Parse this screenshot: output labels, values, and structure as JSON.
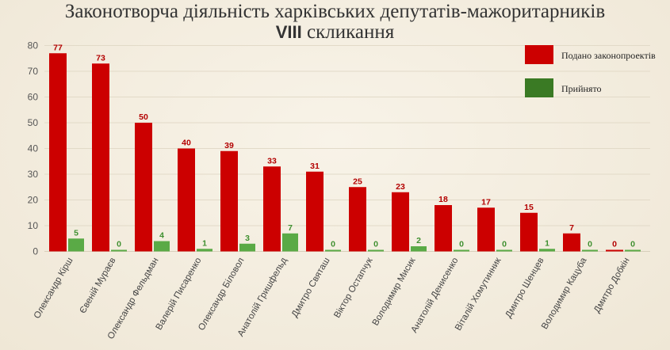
{
  "chart_data": {
    "type": "bar",
    "title_line1": "Законотворча діяльність харківських депутатів-мажоритарників",
    "title_line2_bold": "VIII",
    "title_line2_rest": " скликання",
    "categories": [
      "Олександр Кірш",
      "Євеній Мураєв",
      "Олександр Фельдман",
      "Валерій Писаренко",
      "Олександр Біловол",
      "Анатолій Гришфельд",
      "Дмитро Святаш",
      "Віктор Остапчук",
      "Володимир Мисик",
      "Анатолій Денисенко",
      "Віталій Хомутинник",
      "Дмитро Шенцев",
      "Володимир Кацуба",
      "Дмитро Добкін"
    ],
    "series": [
      {
        "name": "Подано законопроектів",
        "color": "#cc0000",
        "label_color": "#b30000",
        "values": [
          77,
          73,
          50,
          40,
          39,
          33,
          31,
          25,
          23,
          18,
          17,
          15,
          7,
          0
        ]
      },
      {
        "name": "Прийнято",
        "color": "#5aaa46",
        "label_color": "#3e8f2f",
        "values": [
          5,
          0,
          4,
          1,
          3,
          7,
          0,
          0,
          2,
          0,
          0,
          1,
          0,
          0
        ]
      }
    ],
    "ylim": [
      0,
      80
    ],
    "yticks": [
      0,
      10,
      20,
      30,
      40,
      50,
      60,
      70,
      80
    ],
    "legend": {
      "placement": "top-right",
      "colors": [
        "#cc0000",
        "#3a7a24"
      ]
    },
    "grid": true
  }
}
